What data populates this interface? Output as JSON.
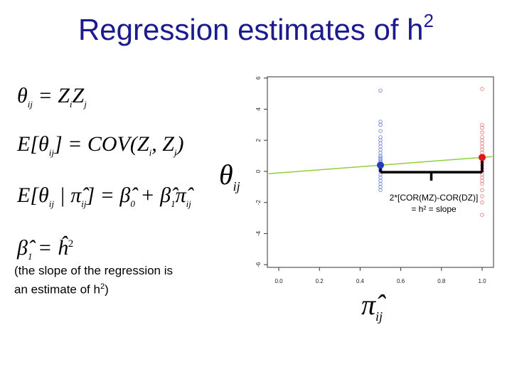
{
  "slide": {
    "title": "Regression estimates of h",
    "title_sup": "2"
  },
  "equations": {
    "eq1": {
      "lhs": "θ",
      "lhs_sub": "ij",
      "rhs": "= Z",
      "rhs_sub1": "i",
      "rhs_mid": "Z",
      "rhs_sub2": "j"
    },
    "eq2": {
      "lhs": "E[θ",
      "lhs_sub": "ij",
      "rhs": "] = COV(Z",
      "rhs_sub1": "i",
      "rhs_mid": ", Z",
      "rhs_sub2": "j",
      "rhs_end": ")"
    },
    "eq3": {
      "lhs": "E[θ",
      "lhs_sub": "ij",
      "mid": " | π̂",
      "mid_sub": "ij",
      "rhs": "] = β̂",
      "rhs_sub1": "0",
      "rhs_mid": " + β̂",
      "rhs_sub2": "1",
      "rhs_end": "π̂",
      "rhs_end_sub": "ij"
    },
    "eq4": {
      "lhs": "β̂",
      "lhs_sub": "1",
      "rhs": "= ĥ",
      "rhs_sup": "2"
    }
  },
  "caption": {
    "line1": "(the slope of the regression is",
    "line2": "an estimate of h",
    "line2_sup": "2",
    "line2_end": ")"
  },
  "axis_symbols": {
    "y_symbol": "θ",
    "y_sub": "ij",
    "x_symbol": "π̂",
    "x_sub": "ij"
  },
  "annotation": {
    "line1": "2*[COR(MZ)-COR(DZ)]",
    "line2": "= h² = slope"
  },
  "colors": {
    "title": "#1b1b8f",
    "dz_points": "#3f5fd0",
    "mz_points": "#e05050",
    "regression_line": "#8fd13a",
    "mean_dz": "#1f3fbf",
    "mean_mz": "#e01818",
    "bracket": "#000000"
  },
  "chart_data": {
    "type": "scatter",
    "x_ticks": [
      "0.0",
      "0.2",
      "0.4",
      "0.6",
      "0.8",
      "1.0"
    ],
    "y_ticks": [
      "-6",
      "-4",
      "-2",
      "0",
      "2",
      "4",
      "6"
    ],
    "xlim": [
      -0.05,
      1.05
    ],
    "ylim": [
      -6.5,
      6.5
    ],
    "series": [
      {
        "x": 0.5,
        "y": [
          5.2,
          3.2,
          3.0,
          2.6,
          2.2,
          2.0,
          1.8,
          1.6,
          1.4,
          1.2,
          1.0,
          0.9,
          0.8,
          0.7,
          0.6,
          0.5,
          0.4,
          0.3,
          0.2,
          0.1,
          0.0,
          -0.2,
          -0.4,
          -0.6,
          -0.8,
          -1.0,
          -1.2
        ]
      },
      {
        "x": 1.0,
        "y": [
          5.3,
          3.0,
          2.8,
          2.5,
          2.2,
          2.0,
          1.8,
          1.6,
          1.4,
          1.2,
          1.0,
          0.8,
          0.6,
          0.4,
          0.2,
          0.0,
          -0.2,
          -0.4,
          -0.6,
          -0.8,
          -1.2,
          -1.6,
          -2.0,
          -2.8
        ]
      }
    ],
    "means": [
      {
        "x": 0.5,
        "y": 0.4
      },
      {
        "x": 1.0,
        "y": 0.9
      }
    ],
    "regression": {
      "intercept": -0.1,
      "slope": 1.0
    }
  }
}
